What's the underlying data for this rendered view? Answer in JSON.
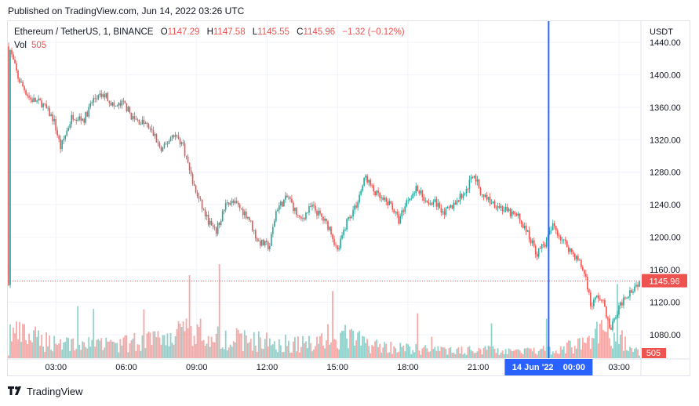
{
  "published_text": "Published on TradingView.com, Jun 14, 2022 03:26 UTC",
  "legend": {
    "symbol": "Ethereum / TetherUS, 1, BINANCE",
    "open_label": "O",
    "open": "1147.29",
    "high_label": "H",
    "high": "1147.58",
    "low_label": "L",
    "low": "1145.55",
    "close_label": "C",
    "close": "1145.96",
    "change": "−1.32 (−0.12%)",
    "vol_label": "Vol",
    "vol": "505"
  },
  "currency": "USDT",
  "price_badge": "1145.96",
  "volume_badge": "505",
  "crosshair_label": "14 Jun '22    00:00",
  "footer_brand": "TradingView",
  "colors": {
    "up": "#26a69a",
    "down": "#ef5350",
    "crosshair": "#2962ff",
    "grid": "#f0f3fa"
  },
  "chart_data": {
    "type": "candlestick",
    "y_ticks": [
      1080,
      1120,
      1160,
      1200,
      1240,
      1280,
      1320,
      1360,
      1400,
      1440
    ],
    "y_tick_labels": [
      "1080.00",
      "1120.00",
      "1160.00",
      "1200.00",
      "1240.00",
      "1280.00",
      "1320.00",
      "1360.00",
      "1400.00",
      "1440.00"
    ],
    "x_ticks": [
      3,
      6,
      9,
      12,
      15,
      18,
      21,
      27
    ],
    "x_tick_labels": [
      "03:00",
      "06:00",
      "09:00",
      "12:00",
      "15:00",
      "18:00",
      "21:00",
      "03:00"
    ],
    "x_range_hours": [
      0.95,
      27.9
    ],
    "ylim": [
      1051,
      1466
    ],
    "crosshair_x_hour": 24,
    "last_price": 1145.96,
    "price_path": [
      [
        1.0,
        1435
      ],
      [
        1.4,
        1395
      ],
      [
        1.9,
        1370
      ],
      [
        2.4,
        1365
      ],
      [
        2.9,
        1345
      ],
      [
        3.2,
        1310
      ],
      [
        3.7,
        1350
      ],
      [
        4.2,
        1345
      ],
      [
        4.6,
        1370
      ],
      [
        5.1,
        1375
      ],
      [
        5.5,
        1360
      ],
      [
        5.9,
        1365
      ],
      [
        6.3,
        1345
      ],
      [
        6.8,
        1340
      ],
      [
        7.2,
        1325
      ],
      [
        7.5,
        1305
      ],
      [
        8.0,
        1328
      ],
      [
        8.4,
        1315
      ],
      [
        8.9,
        1260
      ],
      [
        9.4,
        1225
      ],
      [
        9.8,
        1205
      ],
      [
        10.3,
        1245
      ],
      [
        10.7,
        1240
      ],
      [
        11.2,
        1225
      ],
      [
        11.6,
        1195
      ],
      [
        12.1,
        1188
      ],
      [
        12.4,
        1235
      ],
      [
        12.9,
        1250
      ],
      [
        13.4,
        1220
      ],
      [
        13.9,
        1238
      ],
      [
        14.3,
        1225
      ],
      [
        14.7,
        1210
      ],
      [
        15.0,
        1182
      ],
      [
        15.4,
        1220
      ],
      [
        15.8,
        1240
      ],
      [
        16.2,
        1275
      ],
      [
        16.5,
        1258
      ],
      [
        16.9,
        1245
      ],
      [
        17.3,
        1240
      ],
      [
        17.6,
        1220
      ],
      [
        18.0,
        1248
      ],
      [
        18.4,
        1260
      ],
      [
        18.8,
        1245
      ],
      [
        19.2,
        1242
      ],
      [
        19.6,
        1230
      ],
      [
        20.1,
        1245
      ],
      [
        20.5,
        1258
      ],
      [
        20.8,
        1280
      ],
      [
        21.1,
        1255
      ],
      [
        21.5,
        1245
      ],
      [
        21.9,
        1238
      ],
      [
        22.3,
        1230
      ],
      [
        22.7,
        1225
      ],
      [
        23.1,
        1205
      ],
      [
        23.5,
        1180
      ],
      [
        23.9,
        1195
      ],
      [
        24.2,
        1215
      ],
      [
        24.5,
        1200
      ],
      [
        24.9,
        1185
      ],
      [
        25.3,
        1170
      ],
      [
        25.6,
        1150
      ],
      [
        25.8,
        1115
      ],
      [
        26.1,
        1128
      ],
      [
        26.4,
        1115
      ],
      [
        26.6,
        1085
      ],
      [
        26.9,
        1105
      ],
      [
        27.2,
        1125
      ],
      [
        27.6,
        1138
      ],
      [
        27.9,
        1146
      ]
    ],
    "volume_path": [
      [
        1.0,
        60
      ],
      [
        2.5,
        40
      ],
      [
        4.0,
        35
      ],
      [
        5.5,
        30
      ],
      [
        7.0,
        42
      ],
      [
        8.5,
        55
      ],
      [
        9.2,
        80
      ],
      [
        10.5,
        45
      ],
      [
        12.0,
        38
      ],
      [
        13.5,
        32
      ],
      [
        15.0,
        55
      ],
      [
        16.5,
        30
      ],
      [
        18.0,
        22
      ],
      [
        19.5,
        18
      ],
      [
        21.0,
        20
      ],
      [
        22.5,
        14
      ],
      [
        23.5,
        16
      ],
      [
        24.5,
        22
      ],
      [
        25.5,
        35
      ],
      [
        26.3,
        65
      ],
      [
        27.0,
        45
      ],
      [
        27.9,
        10
      ]
    ],
    "volume_max": 240
  }
}
